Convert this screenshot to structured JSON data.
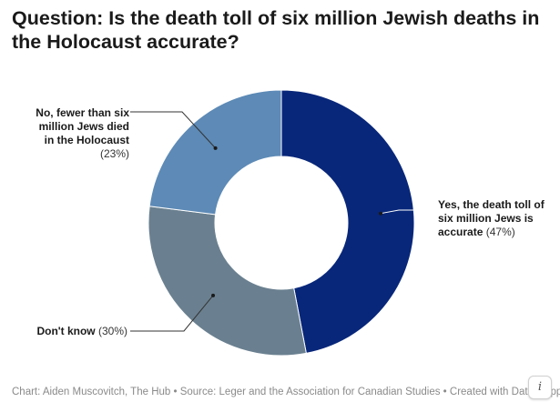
{
  "title": "Question: Is the death toll of six million Jewish deaths in the Holocaust accurate?",
  "footer": "Chart: Aiden Muscovitch, The Hub • Source: Leger and the Association for Canadian Studies • Created with Datawrapper",
  "info_icon": "i",
  "chart_data": {
    "type": "pie",
    "donut": true,
    "title": "Question: Is the death toll of six million Jewish deaths in the Holocaust accurate?",
    "slices": [
      {
        "label": "Yes, the death toll of six million Jews is accurate",
        "value": 47,
        "value_label": "(47%)",
        "color": "#08277a"
      },
      {
        "label": "Don't know",
        "value": 30,
        "value_label": "(30%)",
        "color": "#6a8090"
      },
      {
        "label": "No, fewer than six million Jews died in the Holocaust",
        "value": 23,
        "value_label": "(23%)",
        "color": "#5d8ab6"
      }
    ]
  }
}
